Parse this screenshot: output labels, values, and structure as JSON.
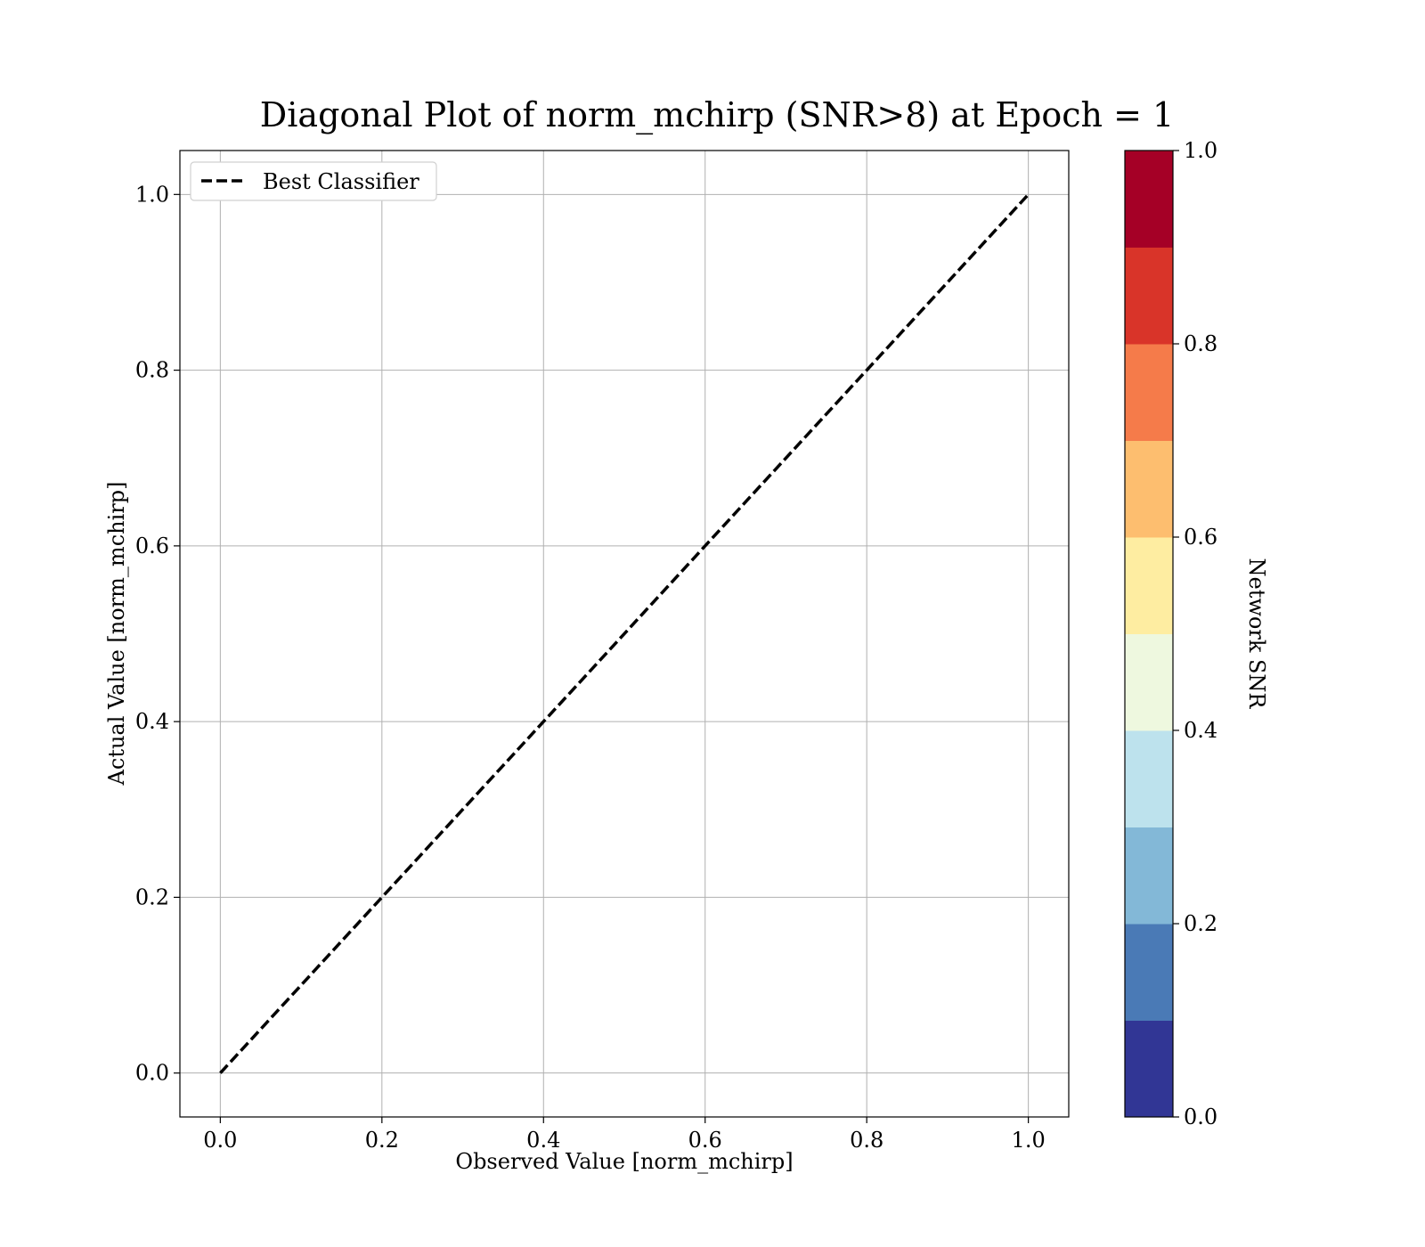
{
  "chart_data": {
    "type": "line",
    "title": "Diagonal Plot of norm_mchirp (SNR>8) at Epoch = 1",
    "xlabel": "Observed Value [norm_mchirp]",
    "ylabel": "Actual Value [norm_mchirp]",
    "xlim": [
      -0.05,
      1.05
    ],
    "ylim": [
      -0.05,
      1.05
    ],
    "xticks": [
      0.0,
      0.2,
      0.4,
      0.6,
      0.8,
      1.0
    ],
    "yticks": [
      0.0,
      0.2,
      0.4,
      0.6,
      0.8,
      1.0
    ],
    "xtick_labels": [
      "0.0",
      "0.2",
      "0.4",
      "0.6",
      "0.8",
      "1.0"
    ],
    "ytick_labels": [
      "0.0",
      "0.2",
      "0.4",
      "0.6",
      "0.8",
      "1.0"
    ],
    "grid": true,
    "legend_position": "top-left",
    "series": [
      {
        "name": "Best Classifier",
        "x": [
          0.0,
          1.0
        ],
        "y": [
          0.0,
          1.0
        ],
        "style": "dashed",
        "color": "#000000"
      }
    ],
    "colorbar": {
      "label": "Network SNR",
      "range": [
        0.0,
        1.0
      ],
      "ticks": [
        0.0,
        0.2,
        0.4,
        0.6,
        0.8,
        1.0
      ],
      "tick_labels": [
        "0.0",
        "0.2",
        "0.4",
        "0.6",
        "0.8",
        "1.0"
      ],
      "colors": [
        "#313695",
        "#4a7ab6",
        "#83b8d7",
        "#bde2ed",
        "#eef8df",
        "#feeda1",
        "#fdbe6f",
        "#f57b4a",
        "#d93429",
        "#a50026"
      ]
    }
  }
}
